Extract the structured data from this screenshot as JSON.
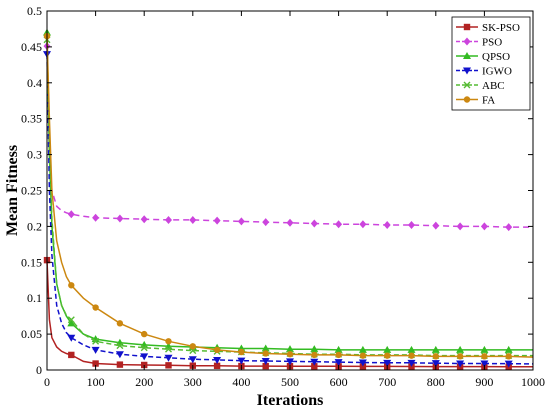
{
  "chart_data": {
    "type": "line",
    "xlabel": "Iterations",
    "ylabel": "Mean Fitness",
    "xlim": [
      0,
      1000
    ],
    "ylim": [
      0,
      0.5
    ],
    "xticks": [
      "0",
      "100",
      "200",
      "300",
      "400",
      "500",
      "600",
      "700",
      "800",
      "900",
      "1000"
    ],
    "yticks": [
      "0",
      "0.05",
      "0.1",
      "0.15",
      "0.2",
      "0.25",
      "0.3",
      "0.35",
      "0.4",
      "0.45",
      "0.5"
    ],
    "legend_position": "top-right",
    "grid": false,
    "x": [
      0,
      5,
      10,
      20,
      30,
      40,
      50,
      75,
      100,
      150,
      200,
      250,
      300,
      350,
      400,
      450,
      500,
      550,
      600,
      650,
      700,
      750,
      800,
      850,
      900,
      950,
      1000
    ],
    "marker_x": [
      0,
      50,
      100,
      150,
      200,
      250,
      300,
      350,
      400,
      450,
      500,
      550,
      600,
      650,
      700,
      750,
      800,
      850,
      900,
      950
    ],
    "series": [
      {
        "name": "SK-PSO",
        "color": "#b22222",
        "dash": "",
        "marker": "square",
        "values": [
          0.153,
          0.07,
          0.045,
          0.032,
          0.026,
          0.023,
          0.021,
          0.012,
          0.009,
          0.0075,
          0.007,
          0.0065,
          0.006,
          0.0058,
          0.0055,
          0.0054,
          0.0053,
          0.0052,
          0.0051,
          0.005,
          0.005,
          0.0049,
          0.0048,
          0.0048,
          0.0047,
          0.0046,
          0.0045
        ]
      },
      {
        "name": "PSO",
        "color": "#cc44dd",
        "dash": "6,4",
        "marker": "diamond",
        "values": [
          0.451,
          0.3,
          0.25,
          0.228,
          0.222,
          0.219,
          0.217,
          0.214,
          0.212,
          0.211,
          0.21,
          0.209,
          0.209,
          0.208,
          0.207,
          0.206,
          0.205,
          0.204,
          0.203,
          0.203,
          0.202,
          0.202,
          0.201,
          0.2,
          0.2,
          0.199,
          0.199
        ]
      },
      {
        "name": "QPSO",
        "color": "#33bb22",
        "dash": "",
        "marker": "triangle-up",
        "values": [
          0.47,
          0.3,
          0.2,
          0.12,
          0.09,
          0.075,
          0.065,
          0.05,
          0.043,
          0.038,
          0.035,
          0.033,
          0.032,
          0.031,
          0.03,
          0.03,
          0.029,
          0.029,
          0.028,
          0.028,
          0.028,
          0.028,
          0.028,
          0.028,
          0.028,
          0.028,
          0.028
        ]
      },
      {
        "name": "IGWO",
        "color": "#1111cc",
        "dash": "5,3",
        "marker": "triangle-down",
        "values": [
          0.44,
          0.25,
          0.16,
          0.09,
          0.065,
          0.052,
          0.045,
          0.035,
          0.028,
          0.022,
          0.019,
          0.017,
          0.015,
          0.014,
          0.013,
          0.0125,
          0.012,
          0.0115,
          0.011,
          0.0105,
          0.01,
          0.01,
          0.0095,
          0.009,
          0.009,
          0.0088,
          0.0085
        ]
      },
      {
        "name": "ABC",
        "color": "#55bb33",
        "dash": "5,3",
        "marker": "x",
        "values": [
          0.46,
          0.32,
          0.21,
          0.12,
          0.09,
          0.076,
          0.07,
          0.05,
          0.04,
          0.034,
          0.031,
          0.029,
          0.027,
          0.026,
          0.025,
          0.024,
          0.023,
          0.022,
          0.022,
          0.021,
          0.021,
          0.021,
          0.02,
          0.02,
          0.02,
          0.02,
          0.02
        ]
      },
      {
        "name": "FA",
        "color": "#cc8811",
        "dash": "",
        "marker": "circle",
        "values": [
          0.465,
          0.35,
          0.25,
          0.18,
          0.15,
          0.13,
          0.118,
          0.1,
          0.087,
          0.065,
          0.05,
          0.04,
          0.033,
          0.028,
          0.025,
          0.023,
          0.022,
          0.021,
          0.021,
          0.02,
          0.02,
          0.02,
          0.019,
          0.019,
          0.019,
          0.019,
          0.018
        ]
      }
    ]
  }
}
